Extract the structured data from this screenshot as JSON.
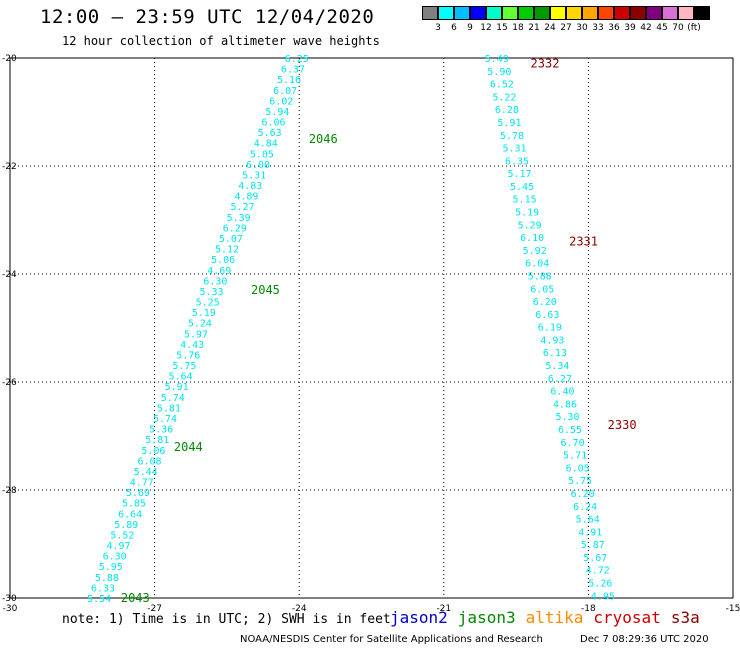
{
  "title": "12:00 – 23:59 UTC 12/04/2020",
  "subtitle": "12 hour collection of altimeter wave heights",
  "note": "note:  1) Time is in UTC; 2) SWH is in feet",
  "satellites": [
    {
      "name": "jason2",
      "color": "#0000cc"
    },
    {
      "name": "jason3",
      "color": "#008800"
    },
    {
      "name": "altika",
      "color": "#ff8800"
    },
    {
      "name": "cryosat",
      "color": "#cc0000"
    },
    {
      "name": "s3a",
      "color": "#880000"
    }
  ],
  "footer_left": "NOAA/NESDIS Center for Satellite Applications and Research",
  "footer_right": "Dec  7 08:29:36 UTC 2020",
  "legend": {
    "colors": [
      "#808080",
      "#00ffff",
      "#00bfff",
      "#0000ff",
      "#00ffc8",
      "#66ff33",
      "#00cc00",
      "#009900",
      "#ffff00",
      "#ffd700",
      "#ffa500",
      "#ff4500",
      "#cc0000",
      "#8b0000",
      "#800080",
      "#da70d6",
      "#ffb6c1",
      "#000000"
    ],
    "labels": [
      "3",
      "6",
      "9",
      "12",
      "15",
      "18",
      "21",
      "24",
      "27",
      "30",
      "33",
      "36",
      "39",
      "42",
      "45",
      "70",
      "(ft)"
    ]
  },
  "chart_data": {
    "type": "scatter",
    "xlim": [
      -30,
      -15
    ],
    "ylim": [
      -30,
      -20
    ],
    "x_ticks": [
      "-30",
      "-27",
      "-24",
      "-21",
      "-18",
      "-15"
    ],
    "y_ticks": [
      "-20",
      "-22",
      "-24",
      "-26",
      "-28",
      "-30"
    ],
    "value_color": "#00e5ee",
    "tracks": [
      {
        "satellite": "jason3",
        "time_labels": [
          {
            "text": "2046",
            "lon": -23.8,
            "lat": -21.5
          },
          {
            "text": "2045",
            "lon": -25.0,
            "lat": -24.3
          },
          {
            "text": "2044",
            "lon": -26.6,
            "lat": -27.2
          },
          {
            "text": "2043",
            "lon": -27.7,
            "lat": -30.0
          }
        ],
        "lon_start": -24.05,
        "lat_start": -20.0,
        "lon_end": -28.15,
        "lat_end": -30.0,
        "values": [
          "6.25",
          "6.37",
          "5.16",
          "6.07",
          "6.02",
          "5.94",
          "6.06",
          "5.63",
          "4.84",
          "5.05",
          "6.00",
          "5.31",
          "4.83",
          "4.89",
          "5.27",
          "5.39",
          "6.29",
          "5.07",
          "5.12",
          "5.06",
          "4.69",
          "6.30",
          "5.33",
          "5.25",
          "5.19",
          "5.24",
          "5.97",
          "4.43",
          "5.76",
          "5.75",
          "5.64",
          "5.91",
          "5.74",
          "5.81",
          "5.74",
          "5.36",
          "5.81",
          "5.06",
          "6.08",
          "5.44",
          "4.77",
          "5.69",
          "5.85",
          "6.64",
          "5.89",
          "5.52",
          "4.97",
          "6.30",
          "5.95",
          "5.88",
          "6.33",
          "5.54"
        ]
      },
      {
        "satellite": "s3a",
        "time_labels": [
          {
            "text": "2332",
            "lon": -19.2,
            "lat": -20.1
          },
          {
            "text": "2331",
            "lon": -18.4,
            "lat": -23.4
          },
          {
            "text": "2330",
            "lon": -17.6,
            "lat": -26.8
          }
        ],
        "lon_start": -19.9,
        "lat_start": -20.0,
        "lon_end": -17.7,
        "lat_end": -29.95,
        "values": [
          "5.49",
          "5.90",
          "6.52",
          "5.22",
          "6.28",
          "5.91",
          "5.78",
          "5.31",
          "6.35",
          "5.17",
          "5.45",
          "5.15",
          "5.19",
          "5.29",
          "6.10",
          "5.92",
          "6.04",
          "5.88",
          "6.05",
          "6.20",
          "6.63",
          "6.19",
          "4.93",
          "6.13",
          "5.34",
          "6.27",
          "6.40",
          "4.86",
          "5.30",
          "6.55",
          "6.70",
          "5.71",
          "6.05",
          "5.75",
          "6.20",
          "6.24",
          "5.64",
          "4.91",
          "5.87",
          "5.67",
          "4.72",
          "5.26",
          "4.95"
        ]
      }
    ]
  }
}
